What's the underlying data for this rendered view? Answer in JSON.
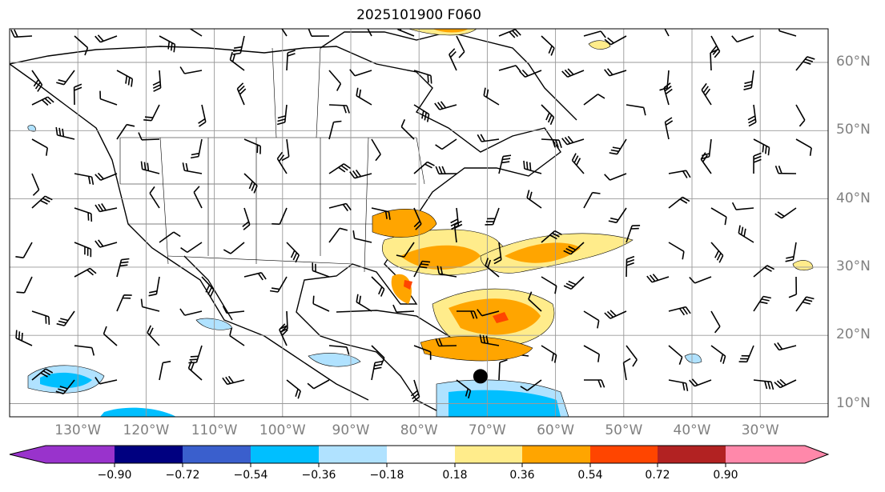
{
  "title": "2025101900 F060",
  "lat_labels": [
    "60°N",
    "50°N",
    "40°N",
    "30°N",
    "20°N",
    "10°N"
  ],
  "lon_labels": [
    "130°W",
    "120°W",
    "110°W",
    "100°W",
    "90°W",
    "80°W",
    "70°W",
    "60°W",
    "50°W",
    "40°W",
    "30°W"
  ],
  "colorbar": {
    "ticks": [
      "−0.90",
      "−0.72",
      "−0.54",
      "−0.36",
      "−0.18",
      "0.18",
      "0.36",
      "0.54",
      "0.72",
      "0.90"
    ],
    "colors": [
      "#9933cc",
      "#000080",
      "#3a5fcd",
      "#00bfff",
      "#b0e2ff",
      "#ffffff",
      "#ffec8b",
      "#ffa500",
      "#ff4500",
      "#b22222",
      "#ff88aa"
    ]
  },
  "marker": {
    "lon": -71,
    "lat": 14
  }
}
